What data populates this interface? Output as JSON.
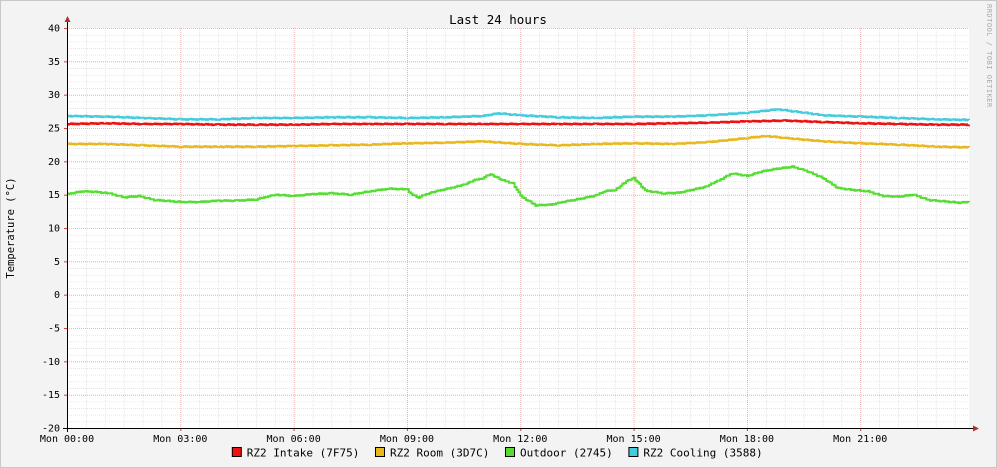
{
  "chart_data": {
    "type": "line",
    "title": "Last 24 hours",
    "ylabel": "Temperature (°C)",
    "xlabel": "",
    "watermark": "RRDTOOL / TOBI OETIKER",
    "ylim": [
      -20,
      40
    ],
    "y_ticks": [
      "40",
      "35",
      "30",
      "25",
      "20",
      "15",
      "10",
      "5",
      "0",
      "-5",
      "-10",
      "-15",
      "-20"
    ],
    "x_range_hours": [
      0,
      23.88
    ],
    "x_ticks": [
      {
        "label": "Mon 00:00",
        "hour": 0
      },
      {
        "label": "Mon 03:00",
        "hour": 3
      },
      {
        "label": "Mon 06:00",
        "hour": 6
      },
      {
        "label": "Mon 09:00",
        "hour": 9
      },
      {
        "label": "Mon 12:00",
        "hour": 12
      },
      {
        "label": "Mon 15:00",
        "hour": 15
      },
      {
        "label": "Mon 18:00",
        "hour": 18
      },
      {
        "label": "Mon 21:00",
        "hour": 21
      }
    ],
    "colors": {
      "background": "#f3f3f3",
      "plot_background": "#ffffff",
      "major_grid": "#e6a0a0",
      "minor_grid": "#dcdcdc",
      "axis": "#000000",
      "arrow": "#b03030"
    },
    "series": [
      {
        "name": "RZ2 Intake (7F75)",
        "color": "#ee1111",
        "x": [
          0,
          1,
          2,
          3,
          4,
          5,
          6,
          7,
          8,
          9,
          10,
          11,
          12,
          13,
          14,
          15,
          16,
          17,
          18,
          19,
          20,
          21,
          22,
          23,
          23.88
        ],
        "y": [
          25.6,
          25.7,
          25.6,
          25.6,
          25.5,
          25.5,
          25.5,
          25.6,
          25.6,
          25.6,
          25.6,
          25.6,
          25.6,
          25.6,
          25.6,
          25.6,
          25.7,
          25.8,
          26.0,
          26.1,
          25.9,
          25.7,
          25.6,
          25.5,
          25.5
        ]
      },
      {
        "name": "RZ2 Room (3D7C)",
        "color": "#e8b81c",
        "x": [
          0,
          1,
          2,
          3,
          4,
          5,
          6,
          7,
          8,
          9,
          10,
          11,
          12,
          13,
          14,
          15,
          16,
          17,
          18,
          18.5,
          19,
          20,
          21,
          22,
          23,
          23.88
        ],
        "y": [
          22.6,
          22.6,
          22.4,
          22.2,
          22.2,
          22.2,
          22.3,
          22.4,
          22.5,
          22.7,
          22.8,
          23.0,
          22.6,
          22.4,
          22.6,
          22.7,
          22.6,
          22.9,
          23.5,
          23.8,
          23.5,
          23.0,
          22.7,
          22.5,
          22.2,
          22.1
        ]
      },
      {
        "name": "Outdoor (2745)",
        "color": "#55dd33",
        "x": [
          0,
          0.4,
          0.8,
          1.1,
          1.5,
          1.9,
          2.3,
          3,
          3.5,
          4,
          4.5,
          5,
          5.5,
          6,
          6.5,
          7,
          7.5,
          8,
          8.5,
          9,
          9.1,
          9.3,
          9.6,
          10,
          10.5,
          10.8,
          11,
          11.2,
          11.5,
          11.8,
          12,
          12.4,
          12.8,
          13.2,
          13.6,
          14,
          14.2,
          14.5,
          14.8,
          15,
          15.3,
          15.8,
          16.2,
          16.6,
          16.9,
          17.2,
          17.6,
          18,
          18.4,
          18.8,
          19.2,
          19.6,
          20,
          20.4,
          20.8,
          21.2,
          21.6,
          22,
          22.4,
          22.8,
          23.2,
          23.6,
          23.88
        ],
        "y": [
          15.1,
          15.5,
          15.4,
          15.2,
          14.6,
          14.8,
          14.2,
          13.9,
          13.9,
          14.1,
          14.1,
          14.3,
          15.0,
          14.8,
          15.1,
          15.2,
          15.0,
          15.5,
          15.9,
          15.8,
          15.1,
          14.6,
          15.3,
          15.8,
          16.5,
          17.2,
          17.5,
          18.1,
          17.2,
          16.7,
          14.8,
          13.4,
          13.5,
          14.0,
          14.4,
          14.9,
          15.5,
          15.7,
          17.0,
          17.5,
          15.6,
          15.2,
          15.3,
          15.8,
          16.2,
          17.0,
          18.2,
          17.8,
          18.5,
          18.9,
          19.2,
          18.5,
          17.5,
          16.0,
          15.7,
          15.5,
          14.8,
          14.7,
          15.0,
          14.2,
          14.0,
          13.8,
          13.9
        ]
      },
      {
        "name": "RZ2 Cooling (3588)",
        "color": "#44ccdd",
        "x": [
          0,
          1,
          2,
          3,
          4,
          5,
          6,
          7,
          8,
          9,
          10,
          11,
          11.4,
          12,
          13,
          14,
          15,
          16,
          17,
          18,
          18.8,
          19.5,
          20,
          21,
          22,
          23,
          23.88
        ],
        "y": [
          26.8,
          26.7,
          26.5,
          26.3,
          26.3,
          26.5,
          26.5,
          26.6,
          26.6,
          26.5,
          26.6,
          26.8,
          27.2,
          26.9,
          26.6,
          26.5,
          26.7,
          26.7,
          26.9,
          27.3,
          27.8,
          27.3,
          26.9,
          26.7,
          26.5,
          26.3,
          26.2
        ]
      }
    ],
    "legend": "bottom-center"
  }
}
